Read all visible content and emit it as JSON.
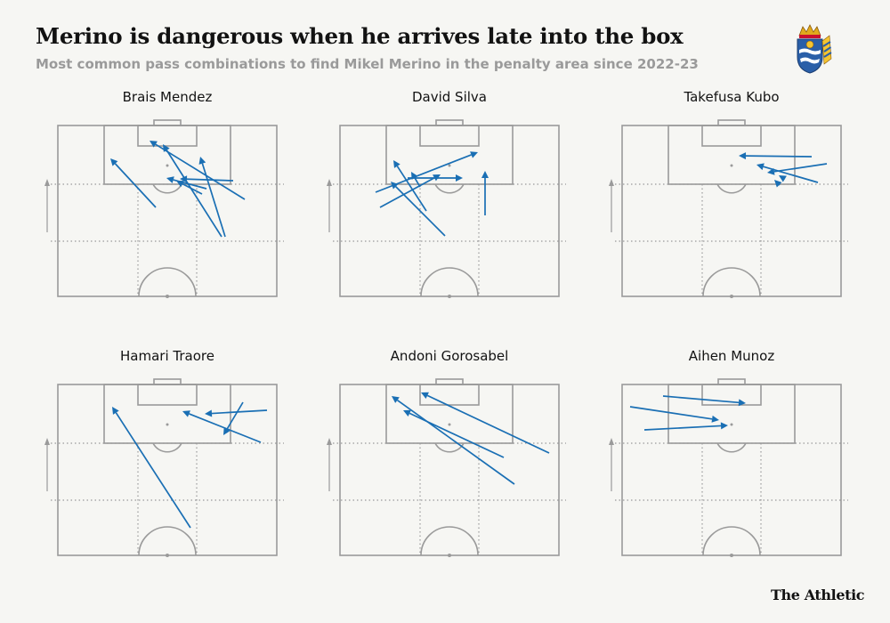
{
  "header": {
    "title": "Merino is dangerous when he arrives late into the box",
    "subtitle": "Most common pass combinations to find Mikel Merino in the penalty area since 2022-23"
  },
  "branding": {
    "publisher": "The Athletic",
    "crest_icon": "real-sociedad-crest-icon"
  },
  "colors": {
    "arrow": "#1a6fb4",
    "pitch_lines": "#9a9a9a",
    "background": "#f6f6f3"
  },
  "chart_data": [
    {
      "type": "pitch-pass-map",
      "title": "Brais Mendez",
      "axis_label": "Attack",
      "passes": [
        {
          "start": [
            175,
            233
          ],
          "end": [
            124,
            178
          ]
        },
        {
          "start": [
            275,
            224
          ],
          "end": [
            168,
            158
          ]
        },
        {
          "start": [
            249,
            266
          ],
          "end": [
            183,
            162
          ]
        },
        {
          "start": [
            253,
            266
          ],
          "end": [
            225,
            176
          ]
        },
        {
          "start": [
            262,
            203
          ],
          "end": [
            202,
            201
          ]
        },
        {
          "start": [
            232,
            212
          ],
          "end": [
            187,
            200
          ]
        },
        {
          "start": [
            227,
            218
          ],
          "end": [
            198,
            203
          ]
        }
      ]
    },
    {
      "type": "pitch-pass-map",
      "title": "David Silva",
      "axis_label": "Attack",
      "passes": [
        {
          "start": [
            500,
            265
          ],
          "end": [
            439,
            204
          ]
        },
        {
          "start": [
            479,
            237
          ],
          "end": [
            442,
            180
          ]
        },
        {
          "start": [
            422,
            216
          ],
          "end": [
            537,
            171
          ]
        },
        {
          "start": [
            427,
            233
          ],
          "end": [
            495,
            196
          ]
        },
        {
          "start": [
            458,
            200
          ],
          "end": [
            520,
            200
          ]
        },
        {
          "start": [
            545,
            242
          ],
          "end": [
            545,
            192
          ]
        },
        {
          "start": [
            472,
            210
          ],
          "end": [
            462,
            193
          ]
        }
      ]
    },
    {
      "type": "pitch-pass-map",
      "title": "Takefusa Kubo",
      "axis_label": "Attack",
      "passes": [
        {
          "start": [
            912,
            176
          ],
          "end": [
            830,
            175
          ]
        },
        {
          "start": [
            929,
            184
          ],
          "end": [
            862,
            194
          ]
        },
        {
          "start": [
            919,
            205
          ],
          "end": [
            850,
            185
          ]
        },
        {
          "start": [
            880,
            200
          ],
          "end": [
            875,
            197
          ]
        },
        {
          "start": [
            876,
            208
          ],
          "end": [
            870,
            202
          ]
        }
      ]
    },
    {
      "type": "pitch-pass-map",
      "title": "Hamari Traore",
      "axis_label": "Attack",
      "passes": [
        {
          "start": [
            214,
            593
          ],
          "end": [
            126,
            457
          ]
        },
        {
          "start": [
            300,
            461
          ],
          "end": [
            230,
            465
          ]
        },
        {
          "start": [
            293,
            497
          ],
          "end": [
            205,
            462
          ]
        },
        {
          "start": [
            273,
            452
          ],
          "end": [
            251,
            489
          ]
        }
      ]
    },
    {
      "type": "pitch-pass-map",
      "title": "Andoni Gorosabel",
      "axis_label": "Attack",
      "passes": [
        {
          "start": [
            578,
            544
          ],
          "end": [
            440,
            445
          ]
        },
        {
          "start": [
            617,
            509
          ],
          "end": [
            473,
            441
          ]
        },
        {
          "start": [
            566,
            514
          ],
          "end": [
            453,
            461
          ]
        }
      ]
    },
    {
      "type": "pitch-pass-map",
      "title": "Aihen Munoz",
      "axis_label": "Attack",
      "passes": [
        {
          "start": [
            745,
            445
          ],
          "end": [
            838,
            453
          ]
        },
        {
          "start": [
            708,
            457
          ],
          "end": [
            808,
            472
          ]
        },
        {
          "start": [
            724,
            483
          ],
          "end": [
            818,
            478
          ]
        }
      ]
    }
  ]
}
